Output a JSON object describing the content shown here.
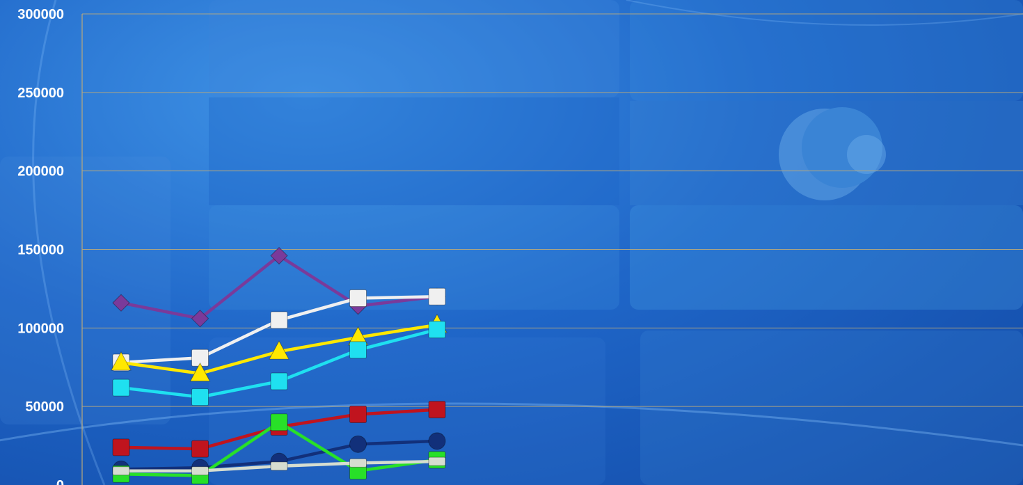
{
  "chart_data": {
    "type": "line",
    "title": "",
    "xlabel": "",
    "ylabel": "",
    "ylim": [
      0,
      300000
    ],
    "yticks": [
      "0",
      "50000",
      "100000",
      "150000",
      "200000",
      "250000",
      "300000"
    ],
    "x": [
      1,
      2,
      3,
      4,
      5
    ],
    "grid": true,
    "legend": "none",
    "series": [
      {
        "values": [
          116000,
          106000,
          146000,
          114000,
          120000
        ],
        "color": "#7a3a9a",
        "marker": "diamond"
      },
      {
        "values": [
          78000,
          81000,
          105000,
          119000,
          120000
        ],
        "color": "#f0f0f0",
        "marker": "square"
      },
      {
        "values": [
          78000,
          71000,
          85000,
          94000,
          102000
        ],
        "color": "#ffe800",
        "marker": "triangle"
      },
      {
        "values": [
          62000,
          56000,
          66000,
          86000,
          99000
        ],
        "color": "#1fe0f0",
        "marker": "square"
      },
      {
        "values": [
          24000,
          23000,
          37000,
          45000,
          48000
        ],
        "color": "#c0141e",
        "marker": "square"
      },
      {
        "values": [
          10000,
          11000,
          15000,
          26000,
          28000
        ],
        "color": "#12307a",
        "marker": "circle"
      },
      {
        "values": [
          7000,
          6000,
          40000,
          9000,
          16000
        ],
        "color": "#28e028",
        "marker": "square"
      },
      {
        "values": [
          9000,
          9000,
          12000,
          14000,
          15000
        ],
        "color": "#d6ddd0",
        "marker": "square"
      }
    ]
  }
}
